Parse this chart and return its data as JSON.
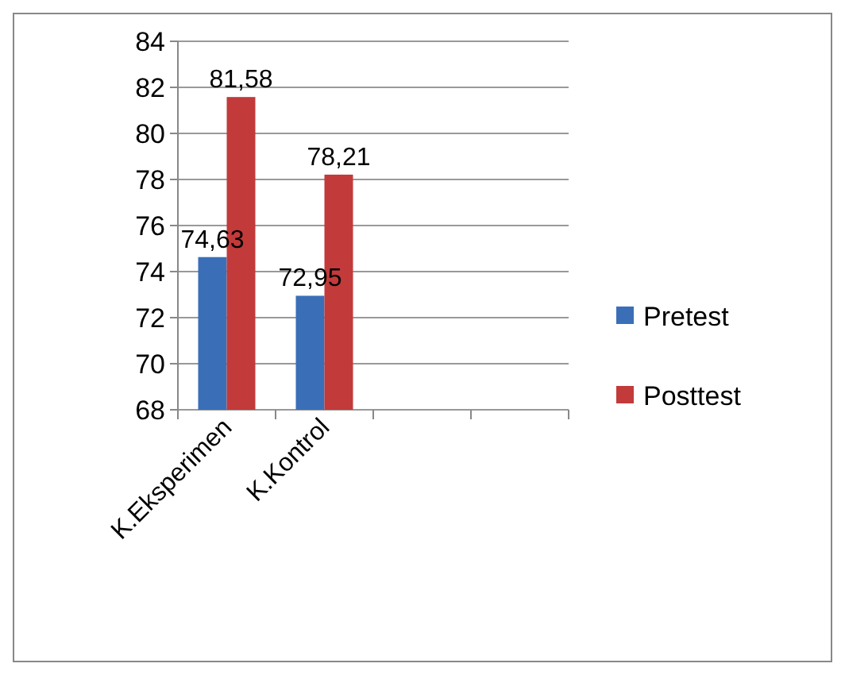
{
  "chart_data": {
    "type": "bar",
    "categories": [
      "K.Eksperimen",
      "K.Kontrol",
      null,
      null
    ],
    "series": [
      {
        "name": "Pretest",
        "color": "#3a6fb8",
        "values": [
          74.63,
          72.95,
          null,
          null
        ],
        "value_labels": [
          "74,63",
          "72,95",
          null,
          null
        ]
      },
      {
        "name": "Posttest",
        "color": "#c23a3a",
        "values": [
          81.58,
          78.21,
          null,
          null
        ],
        "value_labels": [
          "81,58",
          "78,21",
          null,
          null
        ]
      }
    ],
    "ylim": [
      68,
      84
    ],
    "yticks": [
      68,
      70,
      72,
      74,
      76,
      78,
      80,
      82,
      84
    ],
    "grid": "y",
    "legend": "right"
  }
}
